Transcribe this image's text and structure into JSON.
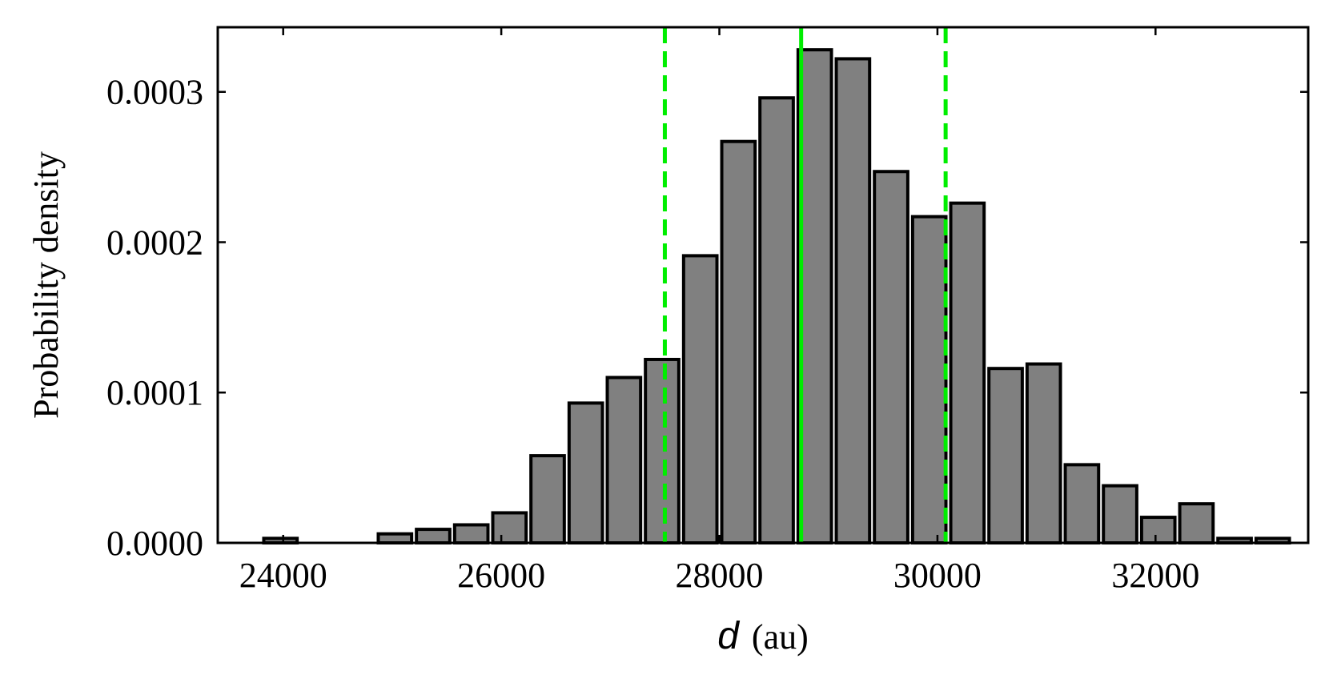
{
  "chart_data": {
    "type": "bar",
    "subtype": "histogram",
    "xlabel_var": "d",
    "xlabel_unit": "(au)",
    "ylabel": "Probability density",
    "xlim": [
      23400,
      33400
    ],
    "ylim": [
      0,
      0.000343
    ],
    "x_ticks": [
      24000,
      26000,
      28000,
      30000,
      32000
    ],
    "x_tick_labels": [
      "24000",
      "26000",
      "28000",
      "30000",
      "32000"
    ],
    "y_ticks": [
      0,
      0.0001,
      0.0002,
      0.0003
    ],
    "y_tick_labels": [
      "0.0000",
      "0.0001",
      "0.0002",
      "0.0003"
    ],
    "bin_edges": [
      23800,
      24150,
      24500,
      24850,
      25200,
      25550,
      25900,
      26250,
      26600,
      26950,
      27300,
      27650,
      28000,
      28350,
      28700,
      29050,
      29400,
      29750,
      30100,
      30450,
      30800,
      31150,
      31500,
      31850,
      32200,
      32550,
      32900,
      33250
    ],
    "values": [
      3e-06,
      0.0,
      0.0,
      6e-06,
      9e-06,
      1.2e-05,
      2e-05,
      5.8e-05,
      9.3e-05,
      0.00011,
      0.000122,
      0.000191,
      0.000267,
      0.000296,
      0.000328,
      0.000322,
      0.000247,
      0.000217,
      0.000226,
      0.000116,
      0.000119,
      5.2e-05,
      3.8e-05,
      1.7e-05,
      2.6e-05,
      3e-06,
      3e-06
    ],
    "bar_color": "#808080",
    "edge_color": "#000000",
    "vlines": [
      {
        "x": 28750,
        "style": "solid",
        "color": "#00ee00"
      },
      {
        "x": 27500,
        "style": "dashed",
        "color": "#00ee00"
      },
      {
        "x": 30075,
        "style": "dashed",
        "color": "#00ee00"
      }
    ],
    "grid": false,
    "ticks_direction": "in"
  }
}
